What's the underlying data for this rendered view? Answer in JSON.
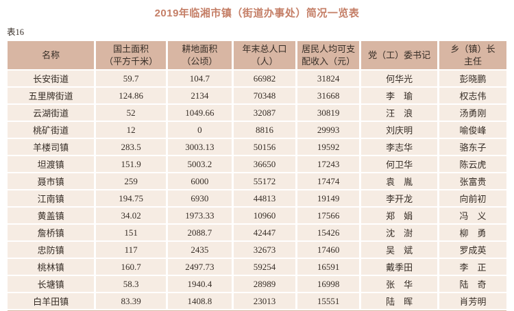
{
  "title": "2019年临湘市镇（街道办事处）简况一览表",
  "table_label": "表16",
  "colors": {
    "title": "#c47e66",
    "header_bg": "#d8b6a3",
    "row_bg": "#f6ece3",
    "text": "#362d26",
    "strip": "#d8b6a3",
    "page_bg": "#ffffff"
  },
  "table": {
    "headers": [
      {
        "key": "name",
        "label": "名称"
      },
      {
        "key": "land-area",
        "label": "国土面积\n（平方千米）"
      },
      {
        "key": "cultivated-area",
        "label": "耕地面积\n（公顷）"
      },
      {
        "key": "population",
        "label": "年末总人口\n（人）"
      },
      {
        "key": "income",
        "label": "居民人均可支\n配收入（元）"
      },
      {
        "key": "party-secretary",
        "label": "党（工）委书记"
      },
      {
        "key": "township-head",
        "label": "乡（镇）长\n主任"
      }
    ],
    "rows": [
      [
        "长安街道",
        "59.7",
        "104.7",
        "66982",
        "31824",
        "何华光",
        "彭晓鹏"
      ],
      [
        "五里牌街道",
        "124.86",
        "2134",
        "70348",
        "31668",
        "李　瑜",
        "权志伟"
      ],
      [
        "云湖街道",
        "52",
        "1049.66",
        "32087",
        "30819",
        "汪　浪",
        "汤勇刚"
      ],
      [
        "桃矿街道",
        "12",
        "0",
        "8816",
        "29993",
        "刘庆明",
        "喻俊峰"
      ],
      [
        "羊楼司镇",
        "283.5",
        "3003.13",
        "50156",
        "19592",
        "李志华",
        "骆东子"
      ],
      [
        "坦渡镇",
        "151.9",
        "5003.2",
        "36650",
        "17243",
        "何卫华",
        "陈云虎"
      ],
      [
        "聂市镇",
        "259",
        "6000",
        "55172",
        "17474",
        "袁　胤",
        "张富贵"
      ],
      [
        "江南镇",
        "194.75",
        "6930",
        "44813",
        "19149",
        "李开龙",
        "向前初"
      ],
      [
        "黄盖镇",
        "34.02",
        "1973.33",
        "10960",
        "17566",
        "郑　娟",
        "冯　义"
      ],
      [
        "詹桥镇",
        "151",
        "2088.7",
        "42447",
        "15426",
        "沈　澍",
        "柳　勇"
      ],
      [
        "忠防镇",
        "117",
        "2435",
        "32673",
        "17460",
        "吴　斌",
        "罗成英"
      ],
      [
        "桃林镇",
        "160.7",
        "2497.73",
        "59254",
        "16591",
        "戴季田",
        "李　正"
      ],
      [
        "长塘镇",
        "58.3",
        "1940.4",
        "28989",
        "16998",
        "张　华",
        "陆　奇"
      ],
      [
        "白羊田镇",
        "83.39",
        "1408.8",
        "23013",
        "15551",
        "陆　晖",
        "肖芳明"
      ]
    ]
  }
}
